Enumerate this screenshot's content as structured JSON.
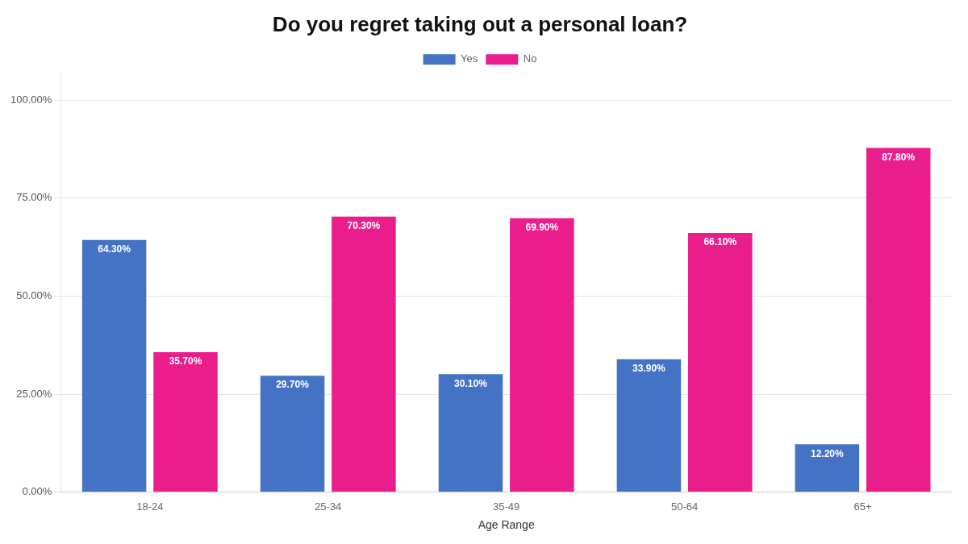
{
  "chart_data": {
    "type": "bar",
    "title": "Do you regret taking out a personal loan?",
    "xlabel": "Age Range",
    "categories": [
      "18-24",
      "25-34",
      "35-49",
      "50-64",
      "65+"
    ],
    "series": [
      {
        "name": "Yes",
        "color": "#4472C4",
        "values": [
          64.3,
          29.7,
          30.1,
          33.9,
          12.2
        ],
        "value_labels": [
          "64.30%",
          "29.70%",
          "30.10%",
          "33.90%",
          "12.20%"
        ]
      },
      {
        "name": "No",
        "color": "#E91E8C",
        "values": [
          35.7,
          70.3,
          69.9,
          66.1,
          87.8
        ],
        "value_labels": [
          "35.70%",
          "70.30%",
          "69.90%",
          "66.10%",
          "87.80%"
        ]
      }
    ],
    "ylim": [
      0,
      107
    ],
    "yticks": [
      {
        "value": 0,
        "label": "0.00%"
      },
      {
        "value": 25,
        "label": "25.00%"
      },
      {
        "value": 50,
        "label": "50.00%"
      },
      {
        "value": 75,
        "label": "75.00%"
      },
      {
        "value": 100,
        "label": "100.00%"
      }
    ],
    "grid": true,
    "legend": "top",
    "data_labels": true
  }
}
